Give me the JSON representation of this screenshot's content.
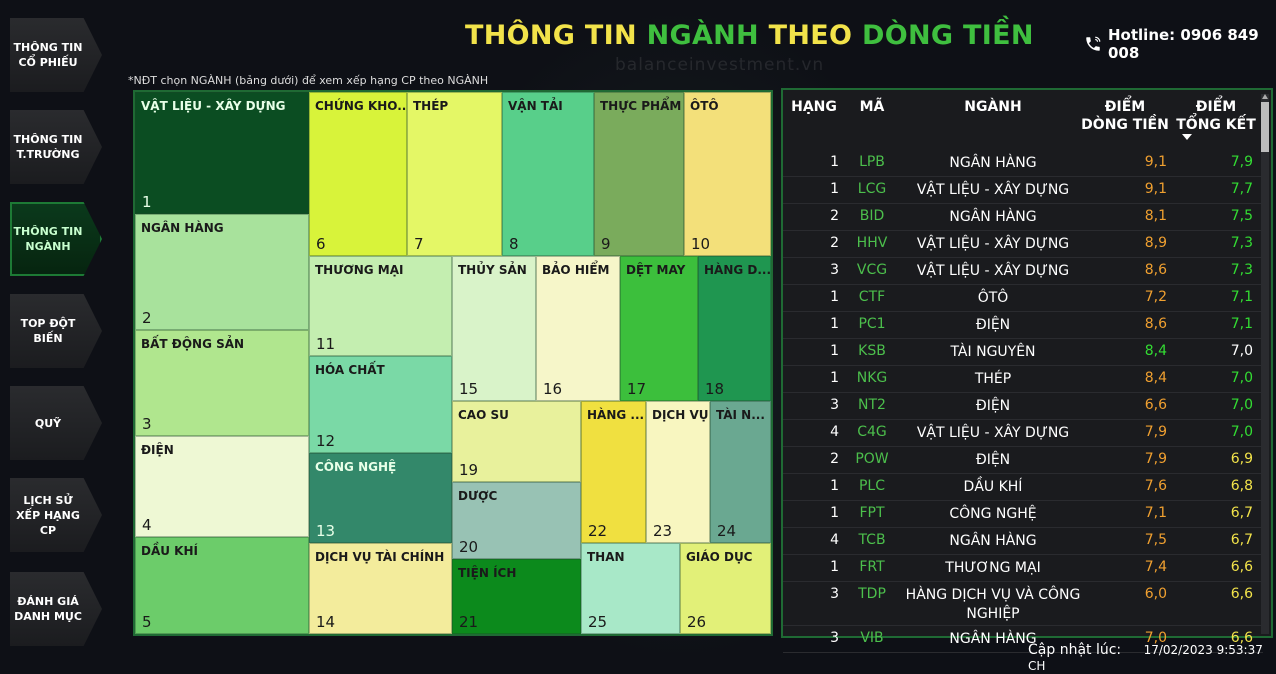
{
  "header": {
    "title_part1": "THÔNG TIN",
    "title_part2": "NGÀNH",
    "title_part3": "THEO",
    "title_part4": "DÒNG TIỀN",
    "hotline": "Hotline: 0906 849 008",
    "watermark": "balanceinvestment.vn"
  },
  "note": "*NĐT chọn NGÀNH (bảng dưới) để xem xếp hạng CP theo NGÀNH",
  "sidebar": {
    "items": [
      {
        "label": "THÔNG TIN CỔ PHIẾU"
      },
      {
        "label": "THÔNG TIN T.TRƯỜNG"
      },
      {
        "label": "THÔNG TIN NGÀNH",
        "active": true
      },
      {
        "label": "TOP ĐỘT BIẾN"
      },
      {
        "label": "QUỸ"
      },
      {
        "label": "LỊCH SỬ XẾP HẠNG CP"
      },
      {
        "label": "ĐÁNH GIÁ DANH MỤC"
      }
    ]
  },
  "treemap": {
    "tiles": [
      {
        "label": "VẬT LIỆU - XÂY DỰNG",
        "num": "1",
        "color": "#0b4d22"
      },
      {
        "label": "NGÂN HÀNG",
        "num": "2",
        "color": "#a8e29c"
      },
      {
        "label": "BẤT ĐỘNG SẢN",
        "num": "3",
        "color": "#b0e68e"
      },
      {
        "label": "ĐIỆN",
        "num": "4",
        "color": "#eef8d4"
      },
      {
        "label": "DẦU KHÍ",
        "num": "5",
        "color": "#6ccc6a"
      },
      {
        "label": "CHỨNG KHO...",
        "num": "6",
        "color": "#d8f33a"
      },
      {
        "label": "THÉP",
        "num": "7",
        "color": "#e4f766"
      },
      {
        "label": "VẬN TẢI",
        "num": "8",
        "color": "#58cf8a"
      },
      {
        "label": "THỰC PHẨM",
        "num": "9",
        "color": "#7aab5c"
      },
      {
        "label": "ÔTÔ",
        "num": "10",
        "color": "#f3e07a"
      },
      {
        "label": "THƯƠNG MẠI",
        "num": "11",
        "color": "#c4eeb0"
      },
      {
        "label": "HÓA CHẤT",
        "num": "12",
        "color": "#7ad9a6"
      },
      {
        "label": "CÔNG NGHỆ",
        "num": "13",
        "color": "#33886a"
      },
      {
        "label": "DỊCH VỤ TÀI CHÍNH",
        "num": "14",
        "color": "#f3ec9c"
      },
      {
        "label": "THỦY SẢN",
        "num": "15",
        "color": "#d9f3c9"
      },
      {
        "label": "BẢO HIỂM",
        "num": "16",
        "color": "#f6f6c9"
      },
      {
        "label": "DỆT MAY",
        "num": "17",
        "color": "#3cbf3c"
      },
      {
        "label": "HÀNG D...",
        "num": "18",
        "color": "#1f9650"
      },
      {
        "label": "CAO SU",
        "num": "19",
        "color": "#e8f19c"
      },
      {
        "label": "DƯỢC",
        "num": "20",
        "color": "#98c2b4"
      },
      {
        "label": "TIỆN ÍCH",
        "num": "21",
        "color": "#0c8a1c"
      },
      {
        "label": "HÀNG ...",
        "num": "22",
        "color": "#f0e040"
      },
      {
        "label": "DỊCH VỤ",
        "num": "23",
        "color": "#f8f6c0"
      },
      {
        "label": "TÀI N...",
        "num": "24",
        "color": "#6aa891"
      },
      {
        "label": "THAN",
        "num": "25",
        "color": "#a8e8c8"
      },
      {
        "label": "GIÁO DỤC",
        "num": "26",
        "color": "#e2f078"
      }
    ]
  },
  "table": {
    "headers": {
      "rank": "HẠNG",
      "code": "MÃ",
      "sector": "NGÀNH",
      "flow_line1": "ĐIỂM",
      "flow_line2": "DÒNG TIỀN",
      "total_line1": "ĐIỂM",
      "total_line2": "TỔNG KẾT"
    },
    "rows": [
      {
        "rank": "1",
        "code": "LPB",
        "sector": "NGÂN HÀNG",
        "flow": "9,1",
        "total": "7,9"
      },
      {
        "rank": "1",
        "code": "LCG",
        "sector": "VẬT LIỆU - XÂY DỰNG",
        "flow": "9,1",
        "total": "7,7"
      },
      {
        "rank": "2",
        "code": "BID",
        "sector": "NGÂN HÀNG",
        "flow": "8,1",
        "total": "7,5"
      },
      {
        "rank": "2",
        "code": "HHV",
        "sector": "VẬT LIỆU - XÂY DỰNG",
        "flow": "8,9",
        "total": "7,3"
      },
      {
        "rank": "3",
        "code": "VCG",
        "sector": "VẬT LIỆU - XÂY DỰNG",
        "flow": "8,6",
        "total": "7,3"
      },
      {
        "rank": "1",
        "code": "CTF",
        "sector": "ÔTÔ",
        "flow": "7,2",
        "total": "7,1"
      },
      {
        "rank": "1",
        "code": "PC1",
        "sector": "ĐIỆN",
        "flow": "8,6",
        "total": "7,1"
      },
      {
        "rank": "1",
        "code": "KSB",
        "sector": "TÀI NGUYÊN",
        "flow": "8,4",
        "total": "7,0"
      },
      {
        "rank": "1",
        "code": "NKG",
        "sector": "THÉP",
        "flow": "8,4",
        "total": "7,0"
      },
      {
        "rank": "3",
        "code": "NT2",
        "sector": "ĐIỆN",
        "flow": "6,6",
        "total": "7,0"
      },
      {
        "rank": "4",
        "code": "C4G",
        "sector": "VẬT LIỆU - XÂY DỰNG",
        "flow": "7,9",
        "total": "7,0"
      },
      {
        "rank": "2",
        "code": "POW",
        "sector": "ĐIỆN",
        "flow": "7,9",
        "total": "6,9"
      },
      {
        "rank": "1",
        "code": "PLC",
        "sector": "DẦU KHÍ",
        "flow": "7,6",
        "total": "6,8"
      },
      {
        "rank": "1",
        "code": "FPT",
        "sector": "CÔNG NGHỆ",
        "flow": "7,1",
        "total": "6,7"
      },
      {
        "rank": "4",
        "code": "TCB",
        "sector": "NGÂN HÀNG",
        "flow": "7,5",
        "total": "6,7"
      },
      {
        "rank": "1",
        "code": "FRT",
        "sector": "THƯƠNG MẠI",
        "flow": "7,4",
        "total": "6,6"
      },
      {
        "rank": "3",
        "code": "TDP",
        "sector": "HÀNG DỊCH VỤ VÀ CÔNG NGHIỆP",
        "flow": "6,0",
        "total": "6,6"
      },
      {
        "rank": "3",
        "code": "VIB",
        "sector": "NGÂN HÀNG",
        "flow": "7,0",
        "total": "6,6"
      }
    ]
  },
  "colors": {
    "score_orange": "#f0a030",
    "score_green": "#33dd33",
    "score_white": "#ffffff",
    "code_green": "#4cbf4c",
    "accent_border": "#1f6a34"
  },
  "footer": {
    "label": "Cập nhật lúc:",
    "timestamp": "17/02/2023 9:53:37 CH"
  }
}
